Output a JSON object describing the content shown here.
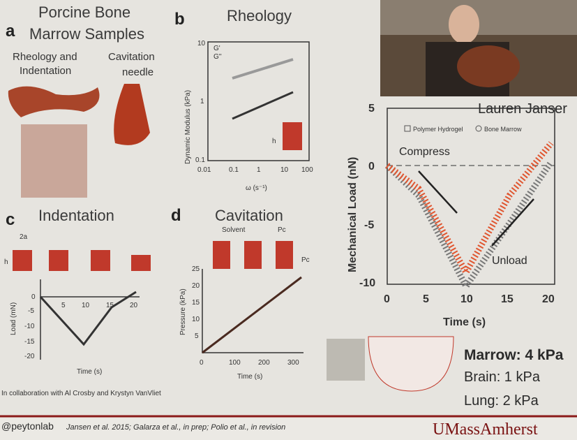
{
  "panel_a": {
    "letter": "a",
    "title": [
      "Porcine Bone",
      "Marrow Samples"
    ],
    "labels": [
      "Rheology and",
      "Indentation",
      "Cavitation",
      "needle"
    ]
  },
  "panel_b": {
    "letter": "b",
    "title": "Rheology",
    "y_label": "Dynamic Modulus (kPa)",
    "x_label": "ω (s⁻¹)",
    "yticks": [
      "10",
      "1",
      "0.1"
    ],
    "xticks": [
      "0.01",
      "0.1",
      "1",
      "10",
      "100"
    ],
    "legend": [
      "G'",
      "G''"
    ],
    "inset_label": "h"
  },
  "panel_c": {
    "letter": "c",
    "title": "Indentation",
    "labels": [
      "2a",
      "h"
    ],
    "y_label": "Load (mN)",
    "x_label": "Time (s)",
    "yticks": [
      "0",
      "-5",
      "-10",
      "-15",
      "-20"
    ],
    "xticks": [
      "5",
      "10",
      "15",
      "20"
    ]
  },
  "panel_d": {
    "letter": "d",
    "title": "Cavitation",
    "labels": [
      "Solvent",
      "Pc",
      "Pc"
    ],
    "y_label": "Pressure (kPa)",
    "x_label": "Time (s)",
    "yticks": [
      "25",
      "20",
      "15",
      "10",
      "5",
      "0"
    ],
    "xticks": [
      "0",
      "100",
      "200",
      "300"
    ]
  },
  "main": {
    "speaker": "Lauren Janser",
    "legend": [
      "Polymer Hydrogel",
      "Bone Marrow"
    ],
    "annotations": [
      "Compress",
      "Unload"
    ],
    "y_label": "Mechanical Load (nN)",
    "x_label": "Time (s)",
    "yticks": [
      "5",
      "0",
      "-5",
      "-10"
    ],
    "xticks": [
      "0",
      "5",
      "10",
      "15",
      "20"
    ]
  },
  "moduli": [
    "Marrow: 4 kPa",
    "Brain: 1 kPa",
    "Lung: 2 kPa"
  ],
  "footer": {
    "collaboration": "In collaboration with Al Crosby and Krystyn VanVliet",
    "handle": "@peytonlab",
    "citations": "Jansen et al. 2015; Galarza et al., in prep; Polio et al., in revision",
    "logo": "UMassAmherst"
  }
}
